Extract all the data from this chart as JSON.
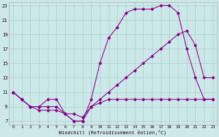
{
  "xlabel": "Windchill (Refroidissement éolien,°C)",
  "bg_color": "#cce8e8",
  "line_color": "#880088",
  "grid_color": "#aacccc",
  "xlim": [
    -0.5,
    23.5
  ],
  "ylim": [
    6.5,
    23.5
  ],
  "xticks": [
    0,
    1,
    2,
    3,
    4,
    5,
    6,
    7,
    8,
    9,
    10,
    11,
    12,
    13,
    14,
    15,
    16,
    17,
    18,
    19,
    20,
    21,
    22,
    23
  ],
  "yticks": [
    7,
    9,
    11,
    13,
    15,
    17,
    19,
    21,
    23
  ],
  "line1_x": [
    0,
    1,
    2,
    3,
    4,
    5,
    6,
    7,
    8,
    9,
    10,
    11,
    12,
    13,
    14,
    15,
    16,
    17,
    18,
    19,
    20,
    21,
    22,
    23
  ],
  "line1_y": [
    11,
    10,
    9,
    9,
    10,
    10,
    8,
    7,
    7,
    10,
    15,
    18.5,
    20,
    22,
    22.5,
    22.5,
    22.5,
    23,
    23,
    22,
    17,
    13,
    10,
    10
  ],
  "line2_x": [
    0,
    1,
    2,
    3,
    4,
    5,
    6,
    7,
    8,
    9,
    10,
    11,
    12,
    13,
    14,
    15,
    16,
    17,
    18,
    19,
    20,
    21,
    22,
    23
  ],
  "line2_y": [
    11,
    10,
    9,
    9,
    9,
    9,
    8,
    8,
    7.5,
    9,
    10,
    11,
    12,
    13,
    14,
    15,
    16,
    17,
    18,
    19,
    19.5,
    17.5,
    13,
    13
  ],
  "line3_x": [
    0,
    1,
    2,
    3,
    4,
    5,
    6,
    7,
    8,
    9,
    10,
    11,
    12,
    13,
    14,
    15,
    16,
    17,
    18,
    19,
    20,
    21,
    22,
    23
  ],
  "line3_y": [
    11,
    10,
    9,
    8.5,
    8.5,
    8.5,
    8,
    7,
    7,
    9,
    9.5,
    10,
    10,
    10,
    10,
    10,
    10,
    10,
    10,
    10,
    10,
    10,
    10,
    10
  ]
}
